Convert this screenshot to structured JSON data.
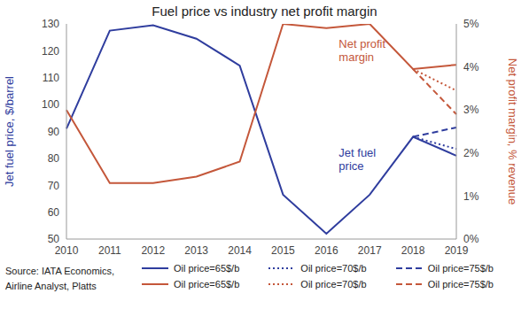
{
  "chart_data": {
    "type": "line",
    "title": "Fuel price vs industry net profit margin",
    "categories": [
      "2010",
      "2011",
      "2012",
      "2013",
      "2014",
      "2015",
      "2016",
      "2017",
      "2018",
      "2019"
    ],
    "y_label": "Jet fuel price, $/barrel",
    "y2_label": "Net profit margin, % revenue",
    "ylim": [
      50,
      130
    ],
    "yticks": [
      50,
      60,
      70,
      80,
      90,
      100,
      110,
      120,
      130
    ],
    "y2lim": [
      0,
      5
    ],
    "y2ticks": [
      {
        "value": 0,
        "label": "0%"
      },
      {
        "value": 1,
        "label": "1%"
      },
      {
        "value": 2,
        "label": "2%"
      },
      {
        "value": 3,
        "label": "3%"
      },
      {
        "value": 4,
        "label": "4%"
      },
      {
        "value": 5,
        "label": "5%"
      }
    ],
    "grid": false,
    "legend": "bottom",
    "series": [
      {
        "name": "Oil price=65$/b",
        "color": "#2f3d9e",
        "line_style": "solid",
        "axis": "y",
        "values": [
          91,
          127.5,
          129.5,
          124.5,
          114.5,
          66.5,
          52,
          66.5,
          88,
          81
        ]
      },
      {
        "name": "Oil price=70$/b",
        "color": "#2f3d9e",
        "line_style": "dotted",
        "axis": "y",
        "values": [
          null,
          null,
          null,
          null,
          null,
          null,
          null,
          null,
          88,
          83.5
        ]
      },
      {
        "name": "Oil price=75$/b",
        "color": "#2f3d9e",
        "line_style": "dashed",
        "axis": "y",
        "values": [
          null,
          null,
          null,
          null,
          null,
          null,
          null,
          null,
          88,
          91.5
        ]
      },
      {
        "name": "Oil price=65$/b",
        "color": "#c4573a",
        "line_style": "solid",
        "axis": "y2",
        "values": [
          3.0,
          1.3,
          1.3,
          1.45,
          1.8,
          5.0,
          4.9,
          5.0,
          3.95,
          4.05
        ]
      },
      {
        "name": "Oil price=70$/b",
        "color": "#c4573a",
        "line_style": "dotted",
        "axis": "y2",
        "values": [
          null,
          null,
          null,
          null,
          null,
          null,
          null,
          null,
          3.95,
          3.45
        ]
      },
      {
        "name": "Oil price=75$/b",
        "color": "#c4573a",
        "line_style": "dashed",
        "axis": "y2",
        "values": [
          null,
          null,
          null,
          null,
          null,
          null,
          null,
          null,
          3.95,
          2.9
        ]
      }
    ],
    "annotations": [
      {
        "text": "Net profit margin",
        "x": "2016",
        "y": 4.4,
        "axis": "y2",
        "color": "#c4573a"
      },
      {
        "text": "Jet fuel price",
        "x": "2016",
        "y": 80,
        "axis": "y",
        "color": "#2f3d9e"
      }
    ],
    "source": "Source: IATA Economics, Airline Analyst, Platts"
  }
}
